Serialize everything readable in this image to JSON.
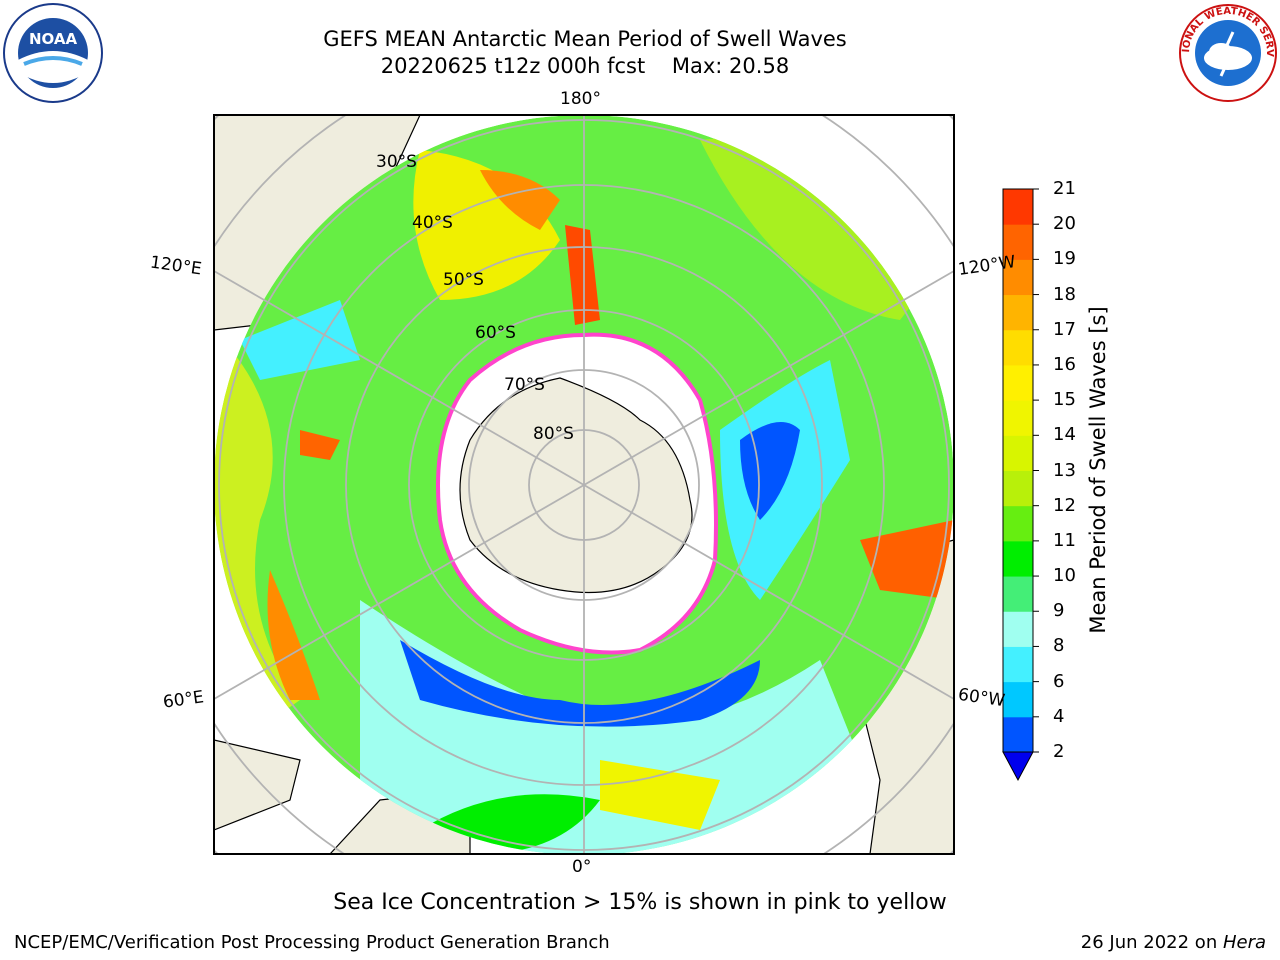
{
  "title": {
    "line1": "GEFS MEAN Antarctic Mean Period of Swell Waves",
    "line2": "20220625 t12z 000h fcst    Max: 20.58"
  },
  "map": {
    "projection": "south polar stereographic",
    "longitude_labels": {
      "top": "180°",
      "bottom": "0°",
      "upper_left": "120°E",
      "lower_left": "60°E",
      "upper_right": "120°W",
      "lower_right": "60°W"
    },
    "latitude_labels": [
      "30°S",
      "40°S",
      "50°S",
      "60°S",
      "70°S",
      "80°S"
    ],
    "colors": {
      "land": "#efedde",
      "ice_free_white": "#ffffff",
      "sea_ice_edge": "#ff44cc",
      "gridline": "#b3b3b3"
    }
  },
  "colorbar": {
    "label": "Mean Period of Swell Waves [s]",
    "ticks": [
      "2",
      "4",
      "6",
      "8",
      "9",
      "10",
      "11",
      "12",
      "13",
      "14",
      "15",
      "16",
      "17",
      "18",
      "19",
      "20",
      "21"
    ],
    "colors": [
      "#0055ff",
      "#00c8ff",
      "#44f0ff",
      "#a0fff0",
      "#44ee77",
      "#00ee00",
      "#66ee11",
      "#b8f00a",
      "#d8f500",
      "#f0f500",
      "#fff000",
      "#ffdd00",
      "#ffb400",
      "#ff8c00",
      "#ff6400",
      "#ff3800",
      "#ff0000"
    ],
    "under_color": "#0000ee"
  },
  "caption": "Sea Ice Concentration > 15% is shown in pink to yellow",
  "footer": {
    "left": "NCEP/EMC/Verification Post Processing Product Generation Branch",
    "right_prefix": "26 Jun 2022 on ",
    "right_host": "Hera"
  },
  "logos": {
    "noaa_text": "NOAA",
    "nws_text": "NATIONAL WEATHER SERVICE"
  }
}
